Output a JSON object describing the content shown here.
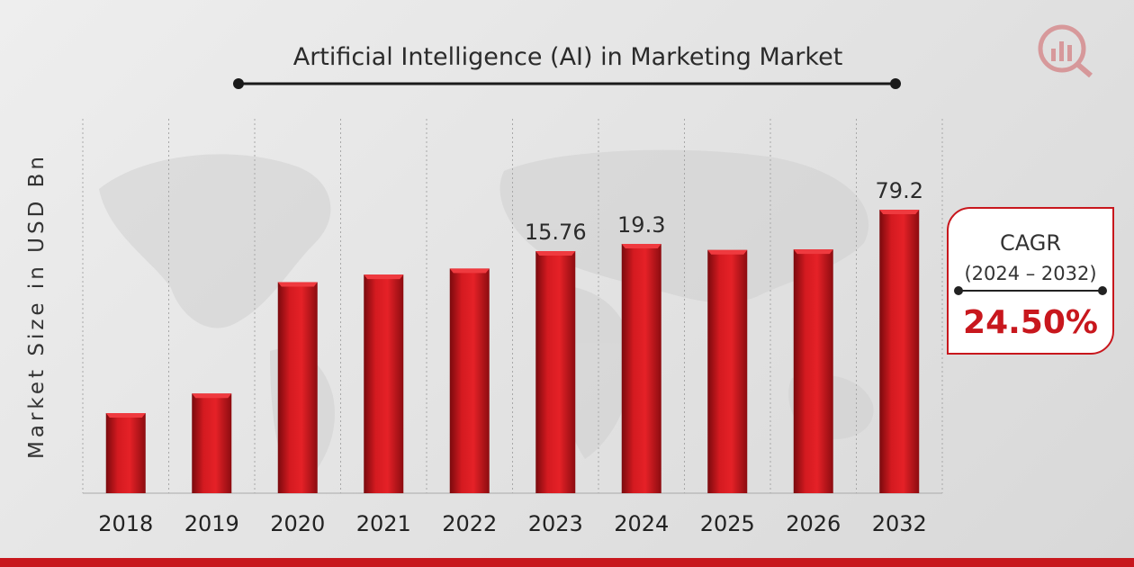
{
  "chart_data": {
    "type": "bar",
    "title": "Artificial Intelligence (AI)  in Marketing Market",
    "ylabel": "Market Size in USD Bn",
    "xlabel": "",
    "categories": [
      "2018",
      "2019",
      "2020",
      "2021",
      "2022",
      "2023",
      "2024",
      "2025",
      "2026",
      "2032"
    ],
    "values": [
      5.0,
      6.3,
      13.7,
      14.2,
      14.6,
      15.76,
      19.3,
      16.3,
      16.6,
      79.2
    ],
    "data_labels": [
      "",
      "",
      "",
      "",
      "",
      "15.76",
      "19.3",
      "",
      "",
      "79.2"
    ],
    "grid": "vertical dashed",
    "bar_color": "#c8171d"
  },
  "cagr": {
    "title": "CAGR",
    "period": "(2024 – 2032)",
    "value": "24.50%"
  },
  "colors": {
    "accent": "#c8171d",
    "text": "#2b2b2b"
  },
  "icons": {
    "logo": "market-research-logo-icon"
  }
}
